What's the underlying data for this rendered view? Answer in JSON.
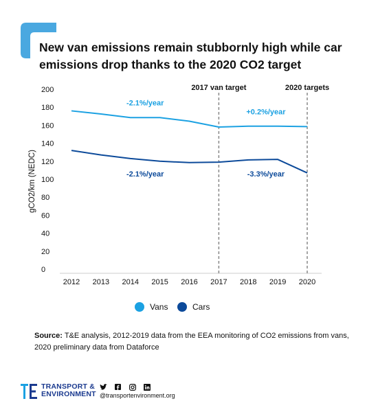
{
  "title": "New van emissions remain stubbornly high while car emissions drop thanks to the 2020 CO2 target",
  "colors": {
    "vans": "#1ba1e2",
    "cars": "#0c4a9a",
    "accent": "#4aa8e0",
    "brand": "#1b3a8f"
  },
  "chart_data": {
    "type": "line",
    "x": [
      2012,
      2013,
      2014,
      2015,
      2016,
      2017,
      2018,
      2019,
      2020
    ],
    "series": [
      {
        "name": "Vans",
        "values": [
          176,
          172.5,
          168.5,
          168.5,
          164.5,
          158,
          159,
          159,
          158.5
        ]
      },
      {
        "name": "Cars",
        "values": [
          132,
          127,
          123,
          120,
          118.5,
          119,
          121.5,
          122,
          107
        ]
      }
    ],
    "ylabel": "gCO2/km (NEDC)",
    "xlabel": "",
    "ylim": [
      0,
      200
    ],
    "yticks": [
      0,
      20,
      40,
      60,
      80,
      100,
      120,
      140,
      160,
      180,
      200
    ],
    "grid": false,
    "legend": "bottom-center",
    "reference_lines": [
      {
        "x": 2017,
        "label": "2017 van target"
      },
      {
        "x": 2020,
        "label": "2020 targets"
      }
    ],
    "annotations": [
      {
        "text": "-2.1%/year",
        "x": 2014.5,
        "y": 182,
        "series": "Vans"
      },
      {
        "text": "+0.2%/year",
        "x": 2018.6,
        "y": 172,
        "series": "Vans"
      },
      {
        "text": "-2.1%/year",
        "x": 2014.5,
        "y": 103,
        "series": "Cars"
      },
      {
        "text": "-3.3%/year",
        "x": 2018.6,
        "y": 103,
        "series": "Cars"
      }
    ]
  },
  "source": {
    "label": "Source:",
    "text": " T&E analysis, 2012-2019 data from the EEA monitoring of CO2 emissions from vans, 2020 preliminary data from Dataforce"
  },
  "footer": {
    "org_line1": "TRANSPORT &",
    "org_line2": "ENVIRONMENT",
    "handle": "@transportenvironment.org",
    "icons": [
      "twitter-icon",
      "facebook-icon",
      "instagram-icon",
      "linkedin-icon"
    ]
  }
}
